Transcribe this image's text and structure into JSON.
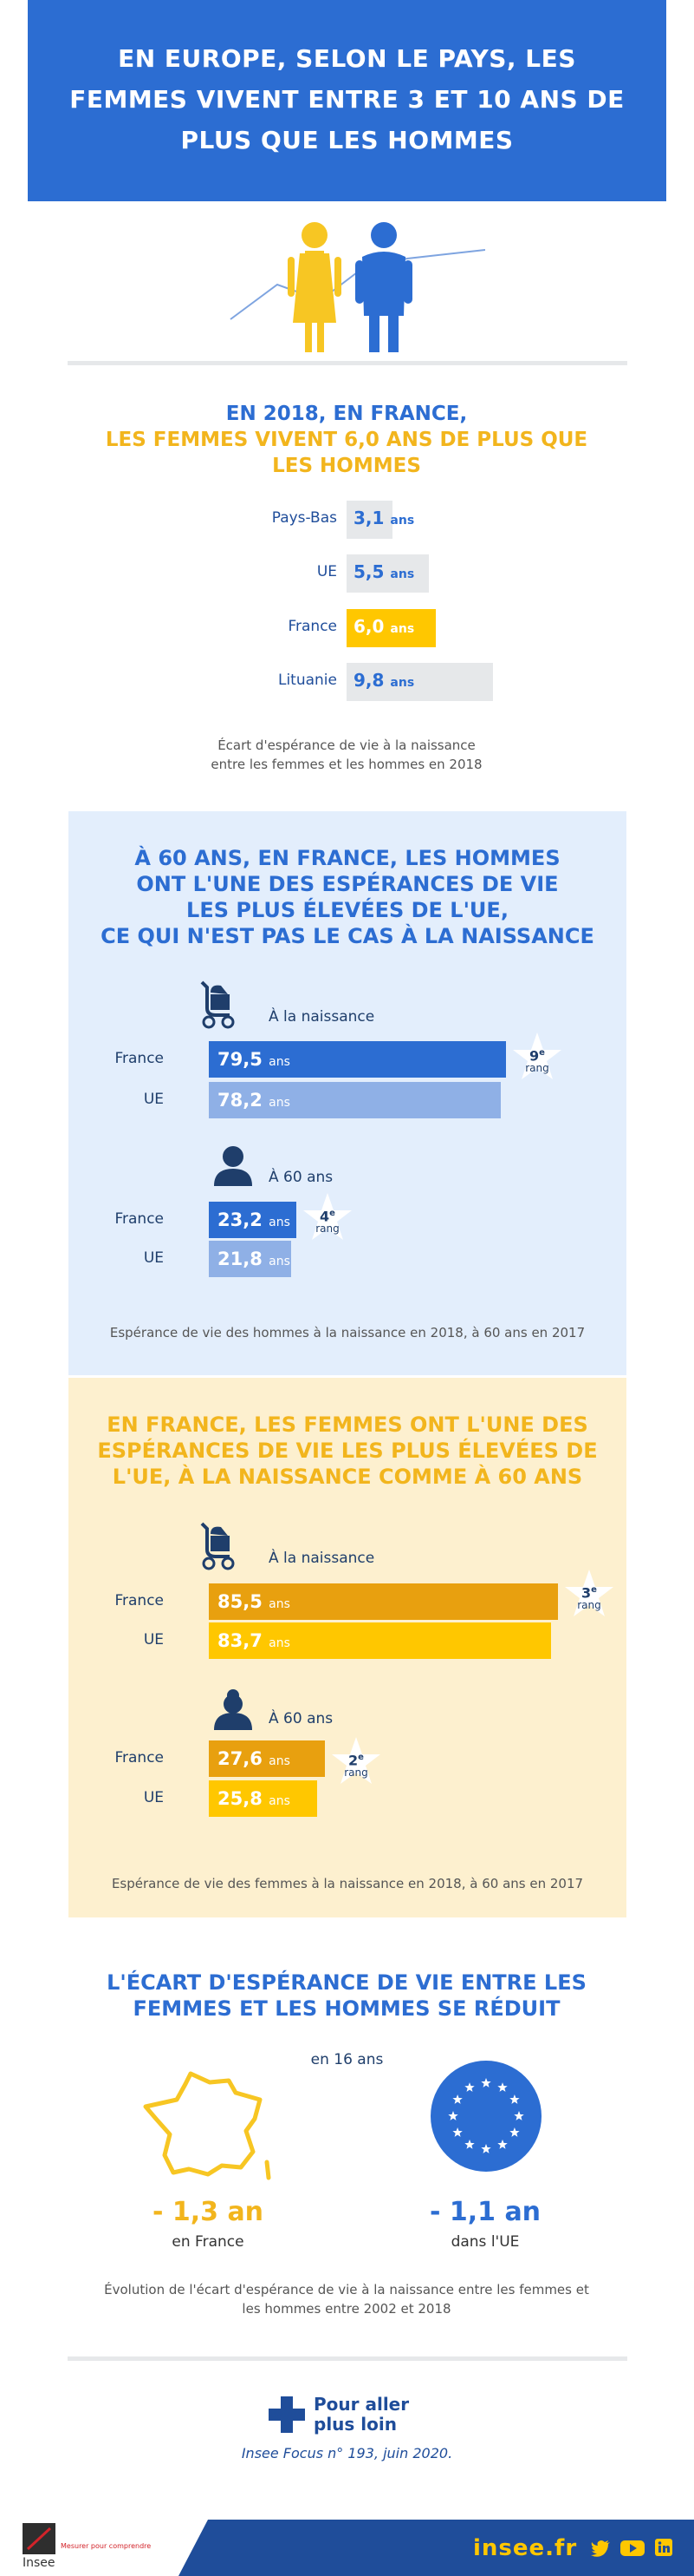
{
  "header": {
    "title": "EN EUROPE, SELON LE PAYS, LES FEMMES VIVENT ENTRE 3 ET 10 ANS DE PLUS QUE LES HOMMES"
  },
  "ecart": {
    "title_blue": "EN 2018, EN FRANCE,",
    "title_yellow": "LES FEMMES VIVENT 6,0 ANS DE PLUS QUE LES HOMMES",
    "rows": [
      {
        "label": "Pays-Bas",
        "value": "3,1",
        "unit": "ans",
        "num": 3.1
      },
      {
        "label": "UE",
        "value": "5,5",
        "unit": "ans",
        "num": 5.5
      },
      {
        "label": "France",
        "value": "6,0",
        "unit": "ans",
        "num": 6.0
      },
      {
        "label": "Lituanie",
        "value": "9,8",
        "unit": "ans",
        "num": 9.8
      }
    ],
    "note_line1": "Écart d'espérance de vie à la naissance",
    "note_line2": "entre les femmes et les hommes en 2018"
  },
  "men": {
    "title_lines": [
      "À 60 ANS, EN FRANCE, LES HOMMES",
      "ONT L'UNE DES ESPÉRANCES DE VIE",
      "LES PLUS ÉLEVÉES DE L'UE,",
      "CE QUI N'EST PAS LE CAS À LA NAISSANCE"
    ],
    "birth_label": "À la naissance",
    "age60_label": "À 60 ans",
    "birth": [
      {
        "label": "France",
        "value": "79,5",
        "unit": "ans",
        "num": 79.5
      },
      {
        "label": "UE",
        "value": "78,2",
        "unit": "ans",
        "num": 78.2
      }
    ],
    "birth_rank": {
      "num": "9",
      "sup": "e",
      "word": "rang"
    },
    "age60": [
      {
        "label": "France",
        "value": "23,2",
        "unit": "ans",
        "num": 23.2
      },
      {
        "label": "UE",
        "value": "21,8",
        "unit": "ans",
        "num": 21.8
      }
    ],
    "age60_rank": {
      "num": "4",
      "sup": "e",
      "word": "rang"
    },
    "note": "Espérance de vie des hommes à la naissance en 2018, à 60 ans en 2017"
  },
  "women": {
    "title_lines": [
      "EN FRANCE, LES FEMMES ONT L'UNE DES",
      "ESPÉRANCES DE VIE LES PLUS ÉLEVÉES DE",
      "L'UE, À LA NAISSANCE COMME À 60 ANS"
    ],
    "birth_label": "À la naissance",
    "age60_label": "À 60 ans",
    "birth": [
      {
        "label": "France",
        "value": "85,5",
        "unit": "ans",
        "num": 85.5
      },
      {
        "label": "UE",
        "value": "83,7",
        "unit": "ans",
        "num": 83.7
      }
    ],
    "birth_rank": {
      "num": "3",
      "sup": "e",
      "word": "rang"
    },
    "age60": [
      {
        "label": "France",
        "value": "27,6",
        "unit": "ans",
        "num": 27.6
      },
      {
        "label": "UE",
        "value": "25,8",
        "unit": "ans",
        "num": 25.8
      }
    ],
    "age60_rank": {
      "num": "2",
      "sup": "e",
      "word": "rang"
    },
    "note": "Espérance de vie des femmes à la naissance en 2018, à 60 ans en 2017"
  },
  "trend": {
    "title_line1": "L'ÉCART D'ESPÉRANCE DE VIE ENTRE LES",
    "title_line2": "FEMMES ET LES HOMMES SE RÉDUIT",
    "period": "en 16 ans",
    "france_value": "- 1,3 an",
    "france_label": "en France",
    "ue_value": "- 1,1 an",
    "ue_label": "dans l'UE",
    "note_line1": "Évolution de l'écart d'espérance de vie à la naissance entre les femmes et",
    "note_line2": "les hommes entre 2002 et 2018"
  },
  "more": {
    "line1": "Pour aller",
    "line2": "plus loin",
    "ref": "Insee Focus n° 193, juin 2020."
  },
  "footer": {
    "logo_text": "Insee",
    "tagline": "Mesurer pour comprendre",
    "site": "insee.fr"
  },
  "colors": {
    "blue": "#2c6dd2",
    "light_blue": "#8fb0e6",
    "yellow": "#f2b51d",
    "dark_yellow": "#e8a00f",
    "gold": "#ffc700",
    "navy": "#1f4d9a"
  }
}
